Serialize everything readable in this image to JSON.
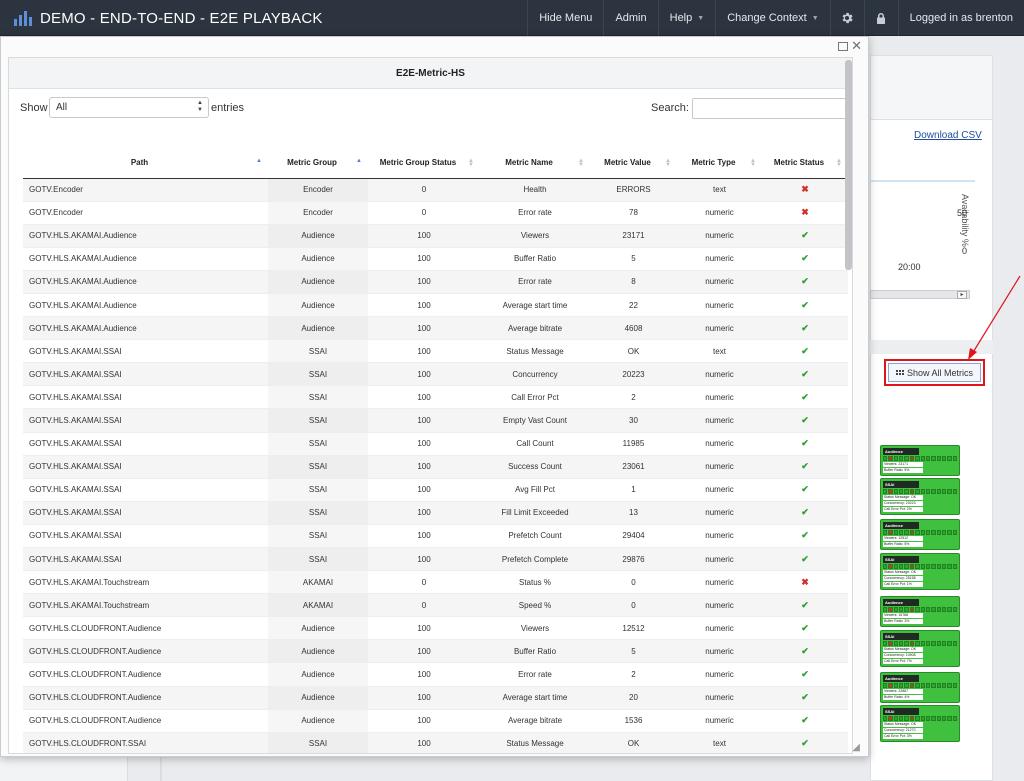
{
  "app": {
    "title": "DEMO - END-TO-END - E2E PLAYBACK"
  },
  "nav": {
    "hide_menu": "Hide Menu",
    "admin": "Admin",
    "help": "Help",
    "change_context": "Change Context",
    "user": "Logged in as brenton"
  },
  "background": {
    "download_csv": "Download CSV",
    "availability_label": "Availability %",
    "tick_50": "50",
    "tick_0": "0",
    "tick_time": "20:00",
    "show_all_metrics": "Show All Metrics",
    "nodes": [
      {
        "title": "Audience",
        "lines": [
          "Viewers: 23171",
          "Buffer Ratio: 5%"
        ]
      },
      {
        "title": "SSAI",
        "lines": [
          "Status Message: OK",
          "Concurrency: 20223",
          "Call Error Pct: 2%"
        ]
      },
      {
        "title": "Audience",
        "lines": [
          "Viewers: 12512",
          "Buffer Ratio: 5%"
        ]
      },
      {
        "title": "SSAI",
        "lines": [
          "Status Message: OK",
          "Concurrency: 25158",
          "Call Error Pct: 1%"
        ]
      },
      {
        "title": "Audience",
        "lines": [
          "Viewers: 15788",
          "Buffer Ratio: 3%"
        ]
      },
      {
        "title": "SSAI",
        "lines": [
          "Status Message: OK",
          "Concurrency: 10908",
          "Call Error Pct: 7%"
        ]
      },
      {
        "title": "Audience",
        "lines": [
          "Viewers: 22887",
          "Buffer Ratio: 4%"
        ]
      },
      {
        "title": "SSAI",
        "lines": [
          "Status Message: OK",
          "Concurrency: 21270",
          "Call Error Pct: 3%"
        ]
      }
    ]
  },
  "modal": {
    "title": "E2E-Metric-HS",
    "show_label": "Show",
    "entries_value": "All",
    "entries_label": "entries",
    "search_label": "Search:",
    "search_value": "",
    "columns": [
      "Path",
      "Metric Group",
      "Metric Group Status",
      "Metric Name",
      "Metric Value",
      "Metric Type",
      "Metric Status"
    ],
    "status_ok_glyph": "✔",
    "status_err_glyph": "✖",
    "rows": [
      {
        "path": "GOTV.Encoder",
        "group": "Encoder",
        "group_status": "0",
        "name": "Health",
        "value": "ERRORS",
        "type": "text",
        "status": "err"
      },
      {
        "path": "GOTV.Encoder",
        "group": "Encoder",
        "group_status": "0",
        "name": "Error rate",
        "value": "78",
        "type": "numeric",
        "status": "err"
      },
      {
        "path": "GOTV.HLS.AKAMAI.Audience",
        "group": "Audience",
        "group_status": "100",
        "name": "Viewers",
        "value": "23171",
        "type": "numeric",
        "status": "ok"
      },
      {
        "path": "GOTV.HLS.AKAMAI.Audience",
        "group": "Audience",
        "group_status": "100",
        "name": "Buffer Ratio",
        "value": "5",
        "type": "numeric",
        "status": "ok"
      },
      {
        "path": "GOTV.HLS.AKAMAI.Audience",
        "group": "Audience",
        "group_status": "100",
        "name": "Error rate",
        "value": "8",
        "type": "numeric",
        "status": "ok"
      },
      {
        "path": "GOTV.HLS.AKAMAI.Audience",
        "group": "Audience",
        "group_status": "100",
        "name": "Average start time",
        "value": "22",
        "type": "numeric",
        "status": "ok"
      },
      {
        "path": "GOTV.HLS.AKAMAI.Audience",
        "group": "Audience",
        "group_status": "100",
        "name": "Average bitrate",
        "value": "4608",
        "type": "numeric",
        "status": "ok"
      },
      {
        "path": "GOTV.HLS.AKAMAI.SSAI",
        "group": "SSAI",
        "group_status": "100",
        "name": "Status Message",
        "value": "OK",
        "type": "text",
        "status": "ok"
      },
      {
        "path": "GOTV.HLS.AKAMAI.SSAI",
        "group": "SSAI",
        "group_status": "100",
        "name": "Concurrency",
        "value": "20223",
        "type": "numeric",
        "status": "ok"
      },
      {
        "path": "GOTV.HLS.AKAMAI.SSAI",
        "group": "SSAI",
        "group_status": "100",
        "name": "Call Error Pct",
        "value": "2",
        "type": "numeric",
        "status": "ok"
      },
      {
        "path": "GOTV.HLS.AKAMAI.SSAI",
        "group": "SSAI",
        "group_status": "100",
        "name": "Empty Vast Count",
        "value": "30",
        "type": "numeric",
        "status": "ok"
      },
      {
        "path": "GOTV.HLS.AKAMAI.SSAI",
        "group": "SSAI",
        "group_status": "100",
        "name": "Call Count",
        "value": "11985",
        "type": "numeric",
        "status": "ok"
      },
      {
        "path": "GOTV.HLS.AKAMAI.SSAI",
        "group": "SSAI",
        "group_status": "100",
        "name": "Success Count",
        "value": "23061",
        "type": "numeric",
        "status": "ok"
      },
      {
        "path": "GOTV.HLS.AKAMAI.SSAI",
        "group": "SSAI",
        "group_status": "100",
        "name": "Avg Fill Pct",
        "value": "1",
        "type": "numeric",
        "status": "ok"
      },
      {
        "path": "GOTV.HLS.AKAMAI.SSAI",
        "group": "SSAI",
        "group_status": "100",
        "name": "Fill Limit Exceeded",
        "value": "13",
        "type": "numeric",
        "status": "ok"
      },
      {
        "path": "GOTV.HLS.AKAMAI.SSAI",
        "group": "SSAI",
        "group_status": "100",
        "name": "Prefetch Count",
        "value": "29404",
        "type": "numeric",
        "status": "ok"
      },
      {
        "path": "GOTV.HLS.AKAMAI.SSAI",
        "group": "SSAI",
        "group_status": "100",
        "name": "Prefetch Complete",
        "value": "29876",
        "type": "numeric",
        "status": "ok"
      },
      {
        "path": "GOTV.HLS.AKAMAI.Touchstream",
        "group": "AKAMAI",
        "group_status": "0",
        "name": "Status %",
        "value": "0",
        "type": "numeric",
        "status": "err"
      },
      {
        "path": "GOTV.HLS.AKAMAI.Touchstream",
        "group": "AKAMAI",
        "group_status": "0",
        "name": "Speed %",
        "value": "0",
        "type": "numeric",
        "status": "ok"
      },
      {
        "path": "GOTV.HLS.CLOUDFRONT.Audience",
        "group": "Audience",
        "group_status": "100",
        "name": "Viewers",
        "value": "12512",
        "type": "numeric",
        "status": "ok"
      },
      {
        "path": "GOTV.HLS.CLOUDFRONT.Audience",
        "group": "Audience",
        "group_status": "100",
        "name": "Buffer Ratio",
        "value": "5",
        "type": "numeric",
        "status": "ok"
      },
      {
        "path": "GOTV.HLS.CLOUDFRONT.Audience",
        "group": "Audience",
        "group_status": "100",
        "name": "Error rate",
        "value": "2",
        "type": "numeric",
        "status": "ok"
      },
      {
        "path": "GOTV.HLS.CLOUDFRONT.Audience",
        "group": "Audience",
        "group_status": "100",
        "name": "Average start time",
        "value": "20",
        "type": "numeric",
        "status": "ok"
      },
      {
        "path": "GOTV.HLS.CLOUDFRONT.Audience",
        "group": "Audience",
        "group_status": "100",
        "name": "Average bitrate",
        "value": "1536",
        "type": "numeric",
        "status": "ok"
      },
      {
        "path": "GOTV.HLS.CLOUDFRONT.SSAI",
        "group": "SSAI",
        "group_status": "100",
        "name": "Status Message",
        "value": "OK",
        "type": "text",
        "status": "ok"
      }
    ]
  },
  "colors": {
    "navbar": "#2c3440",
    "accent": "#5b8fd6",
    "ok": "#2f9e2f",
    "error": "#d32f2f",
    "highlight": "#e0141b",
    "node_green": "#3fc03f"
  }
}
